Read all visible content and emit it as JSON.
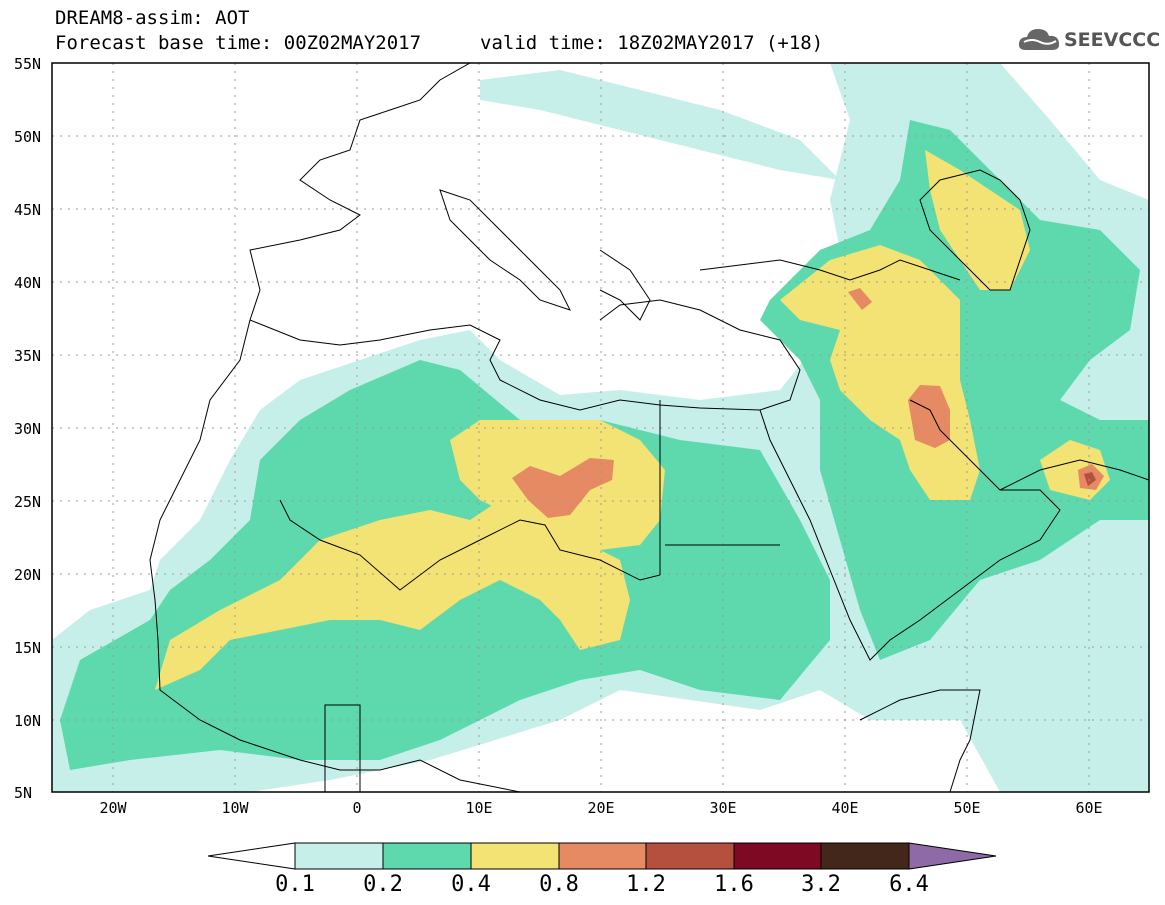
{
  "header": {
    "title": "DREAM8-assim: AOT",
    "base_time": "Forecast base time: 00Z02MAY2017",
    "valid_time": "valid time: 18Z02MAY2017 (+18)"
  },
  "logo": {
    "text": "SEEVCCC",
    "icon": "cloud-icon"
  },
  "axes": {
    "lat_labels": [
      "55N",
      "50N",
      "45N",
      "40N",
      "35N",
      "30N",
      "25N",
      "20N",
      "15N",
      "10N",
      "5N"
    ],
    "lon_labels": [
      "20W",
      "10W",
      "0",
      "10E",
      "20E",
      "30E",
      "40E",
      "50E",
      "60E"
    ],
    "lat_range": [
      5,
      55
    ],
    "lon_range": [
      -25,
      65
    ],
    "grid": true
  },
  "colorbar": {
    "labels": [
      "0.1",
      "0.2",
      "0.4",
      "0.8",
      "1.2",
      "1.6",
      "3.2",
      "6.4"
    ],
    "colors": [
      "#ffffff",
      "#c6efe9",
      "#5dd9ad",
      "#f3e274",
      "#e58a62",
      "#b5503f",
      "#7d0a22",
      "#43271a",
      "#8e6aa6"
    ]
  },
  "field_colors": {
    "c01": "#c6efe9",
    "c02": "#5dd9ad",
    "c04": "#f3e274",
    "c08": "#e58a62",
    "c12": "#b5503f",
    "coast": "#000000"
  }
}
